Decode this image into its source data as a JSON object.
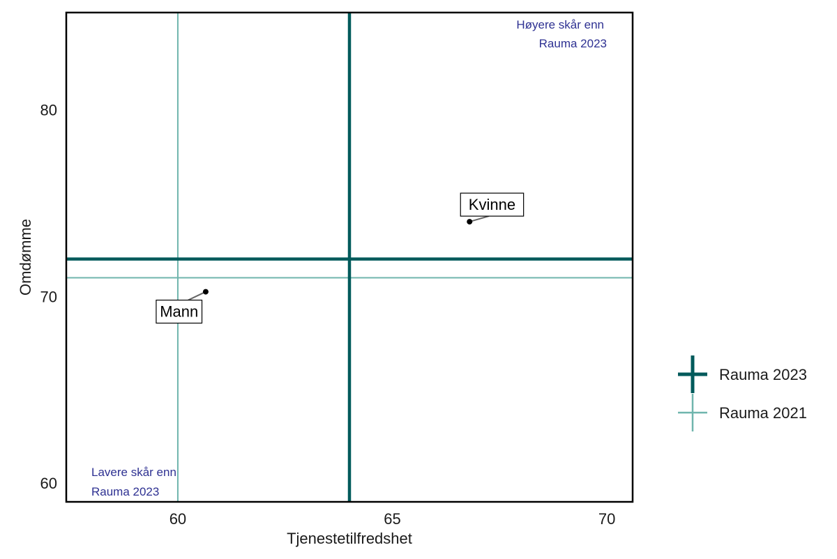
{
  "chart_data": {
    "type": "scatter",
    "xlabel": "Tjenestetilfredshet",
    "ylabel": "Omdømme",
    "xlim": [
      57.4,
      70.6
    ],
    "ylim": [
      59.0,
      85.2
    ],
    "xticks": [
      60,
      65,
      70
    ],
    "yticks": [
      60,
      70,
      80
    ],
    "grid": false,
    "points": [
      {
        "label": "Kvinne",
        "x": 66.8,
        "y": 74.0
      },
      {
        "label": "Mann",
        "x": 60.65,
        "y": 70.25
      }
    ],
    "reference_lines": [
      {
        "name": "Rauma 2023",
        "x": 64.0,
        "y": 72.0,
        "color": "#005a5b"
      },
      {
        "name": "Rauma 2021",
        "x": 60.0,
        "y": 71.0,
        "color": "#6fb5ad"
      }
    ],
    "corner_notes": {
      "top_right": [
        "Høyere skår enn",
        "Rauma 2023"
      ],
      "bottom_left": [
        "Lavere skår enn",
        "Rauma 2023"
      ]
    },
    "legend_position": "right"
  }
}
